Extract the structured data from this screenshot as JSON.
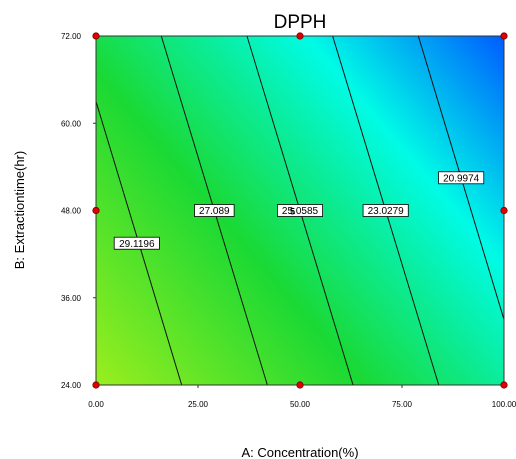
{
  "chart_data": {
    "type": "contour",
    "title": "DPPH",
    "xlabel": "A: Concentration(%)",
    "ylabel": "B: Extractiontime(hr)",
    "xlim": [
      0,
      100
    ],
    "ylim": [
      24,
      72
    ],
    "x_ticks": [
      0,
      25,
      50,
      75,
      100
    ],
    "x_tick_labels": [
      "0.00",
      "25.00",
      "50.00",
      "75.00",
      "100.00"
    ],
    "y_ticks": [
      24,
      36,
      48,
      60,
      72
    ],
    "y_tick_labels": [
      "24.00",
      "36.00",
      "48.00",
      "60.00",
      "72.00"
    ],
    "colormap": [
      "#9aee1e",
      "#1ad934",
      "#00fbe6",
      "#005cff"
    ],
    "contours": [
      {
        "value": 29.1196,
        "label": "29.1196",
        "points": [
          [
            0,
            63.0
          ],
          [
            21,
            24
          ]
        ],
        "label_at": [
          10,
          43.5
        ]
      },
      {
        "value": 27.089,
        "label": "27.089",
        "points": [
          [
            16,
            72
          ],
          [
            42,
            24
          ]
        ],
        "label_at": [
          29,
          48
        ]
      },
      {
        "value": 25.0585,
        "label": "25.0585",
        "points": [
          [
            37,
            72
          ],
          [
            63,
            24
          ]
        ],
        "label_at": [
          50,
          48
        ]
      },
      {
        "value": 23.0279,
        "label": "23.0279",
        "points": [
          [
            58,
            72
          ],
          [
            84,
            24
          ]
        ],
        "label_at": [
          71,
          48
        ]
      },
      {
        "value": 20.9974,
        "label": "20.9974",
        "points": [
          [
            79,
            72
          ],
          [
            100,
            33
          ]
        ],
        "label_at": [
          89.5,
          52.5
        ]
      }
    ],
    "design_points": [
      [
        0,
        24
      ],
      [
        50,
        24
      ],
      [
        100,
        24
      ],
      [
        0,
        48
      ],
      [
        50,
        48
      ],
      [
        100,
        48
      ],
      [
        0,
        72
      ],
      [
        50,
        72
      ],
      [
        100,
        72
      ]
    ],
    "center_point_count": "5",
    "grid": false
  }
}
